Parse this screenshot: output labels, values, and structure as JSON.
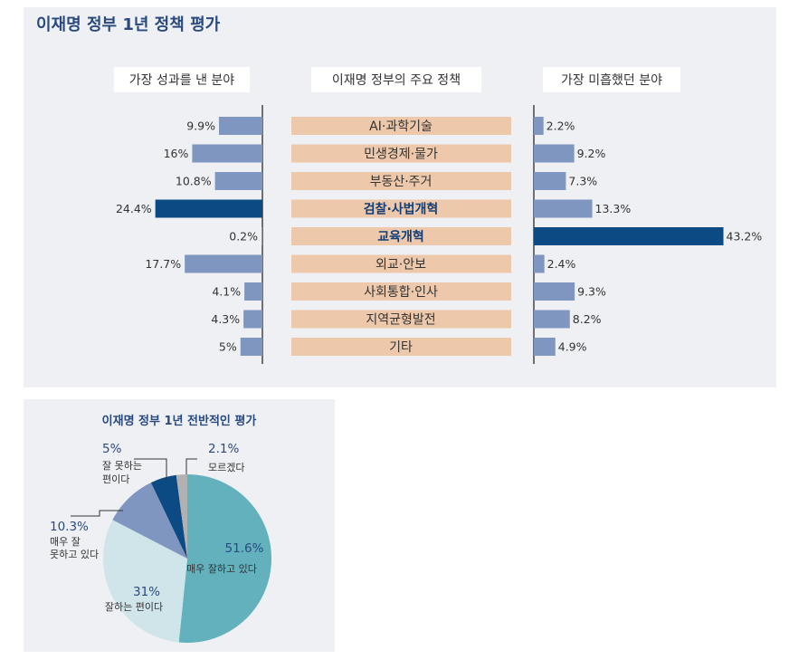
{
  "colors": {
    "bar": "#7f96c0",
    "bar_highlight": "#0c4a84",
    "category_box": "#edc8ab",
    "header_box": "#ffffff",
    "axis_line": "#444444",
    "pie": [
      "#62b1bd",
      "#d0e5ea",
      "#7f96c0",
      "#0c4a84",
      "#b1b1b1"
    ]
  },
  "chart_data": [
    {
      "type": "bar",
      "title": "이재명 정부 1년 정책 평가",
      "center_header": "이재명 정부의 주요 정책",
      "categories": [
        "AI·과학기술",
        "민생경제·물가",
        "부동산·주거",
        "검찰·사법개혁",
        "교육개혁",
        "외교·안보",
        "사회통합·인사",
        "지역균형발전",
        "기타"
      ],
      "highlighted_categories": [
        "검찰·사법개혁",
        "교육개혁"
      ],
      "series": [
        {
          "name": "가장 성과를 낸 분야",
          "values": [
            9.9,
            16,
            10.8,
            24.4,
            0.2,
            17.7,
            4.1,
            4.3,
            5
          ],
          "labels": [
            "9.9%",
            "16%",
            "10.8%",
            "24.4%",
            "0.2%",
            "17.7%",
            "4.1%",
            "4.3%",
            "5%"
          ],
          "highlight_index": 3
        },
        {
          "name": "가장 미흡했던 분야",
          "values": [
            2.2,
            9.2,
            7.3,
            13.3,
            43.2,
            2.4,
            9.3,
            8.2,
            4.9
          ],
          "labels": [
            "2.2%",
            "9.2%",
            "7.3%",
            "13.3%",
            "43.2%",
            "2.4%",
            "9.3%",
            "8.2%",
            "4.9%"
          ],
          "highlight_index": 4
        }
      ]
    },
    {
      "type": "pie",
      "title": "이재명 정부 1년 전반적인 평가",
      "slices": [
        {
          "label": "매우 잘하고 있다",
          "value": 51.6,
          "pct": "51.6%"
        },
        {
          "label": "잘하는 편이다",
          "value": 31,
          "pct": "31%"
        },
        {
          "label": "매우 잘 못하고 있다",
          "label_lines": [
            "매우 잘",
            "못하고 있다"
          ],
          "value": 10.3,
          "pct": "10.3%"
        },
        {
          "label": "잘 못하는 편이다",
          "label_lines": [
            "잘 못하는",
            "편이다"
          ],
          "value": 5,
          "pct": "5%"
        },
        {
          "label": "모르겠다",
          "value": 2.1,
          "pct": "2.1%"
        }
      ]
    }
  ]
}
